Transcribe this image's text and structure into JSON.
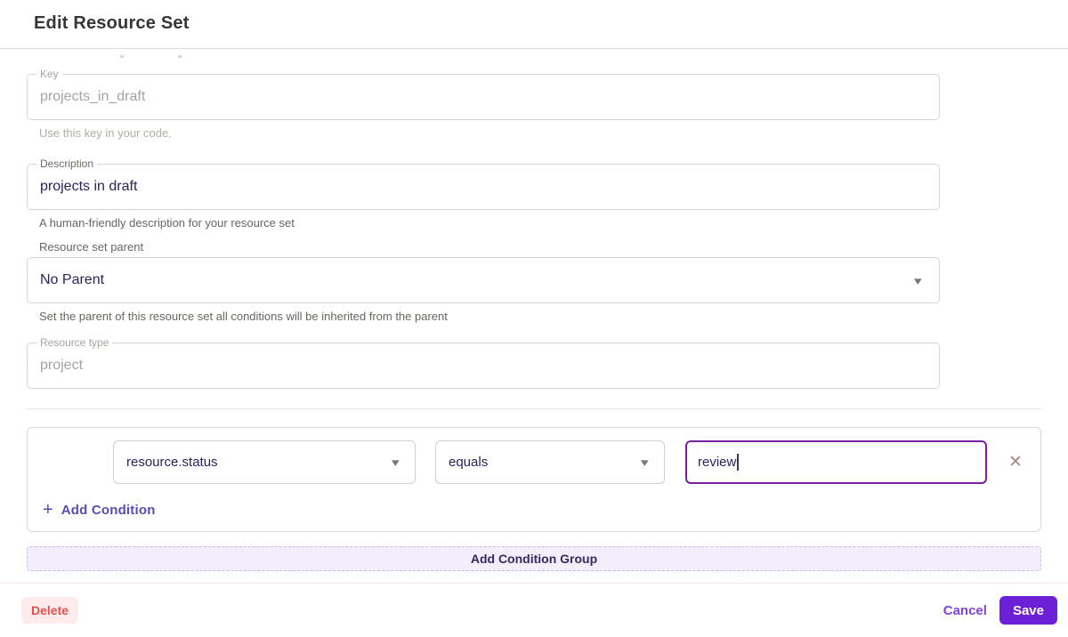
{
  "page": {
    "title": "Edit Resource Set"
  },
  "form": {
    "key": {
      "label": "Key",
      "value": "projects_in_draft",
      "helper": "Use this key in your code."
    },
    "description": {
      "label": "Description",
      "value": "projects in draft",
      "helper": "A human-friendly description for your resource set"
    },
    "parent": {
      "label": "Resource set parent",
      "value": "No Parent",
      "helper": "Set the parent of this resource set all conditions will be inherited from the parent"
    },
    "resource_type": {
      "label": "Resource type",
      "value": "project"
    }
  },
  "conditions": {
    "group": {
      "rows": [
        {
          "field": "resource.status",
          "operator": "equals",
          "value": "review"
        }
      ],
      "add_condition_label": "Add Condition"
    },
    "add_group_label": "Add Condition Group"
  },
  "footer": {
    "delete_label": "Delete",
    "cancel_label": "Cancel",
    "save_label": "Save"
  },
  "icons": {
    "chevron_down": "▾",
    "plus": "+",
    "close": "✕"
  },
  "colors": {
    "accent_purple": "#6b20d8",
    "link_purple": "#5b4ab4",
    "focus_border": "#7b1fa2",
    "delete_red": "#e0524c",
    "delete_bg": "#fdeceb",
    "value_text": "#29235c"
  }
}
